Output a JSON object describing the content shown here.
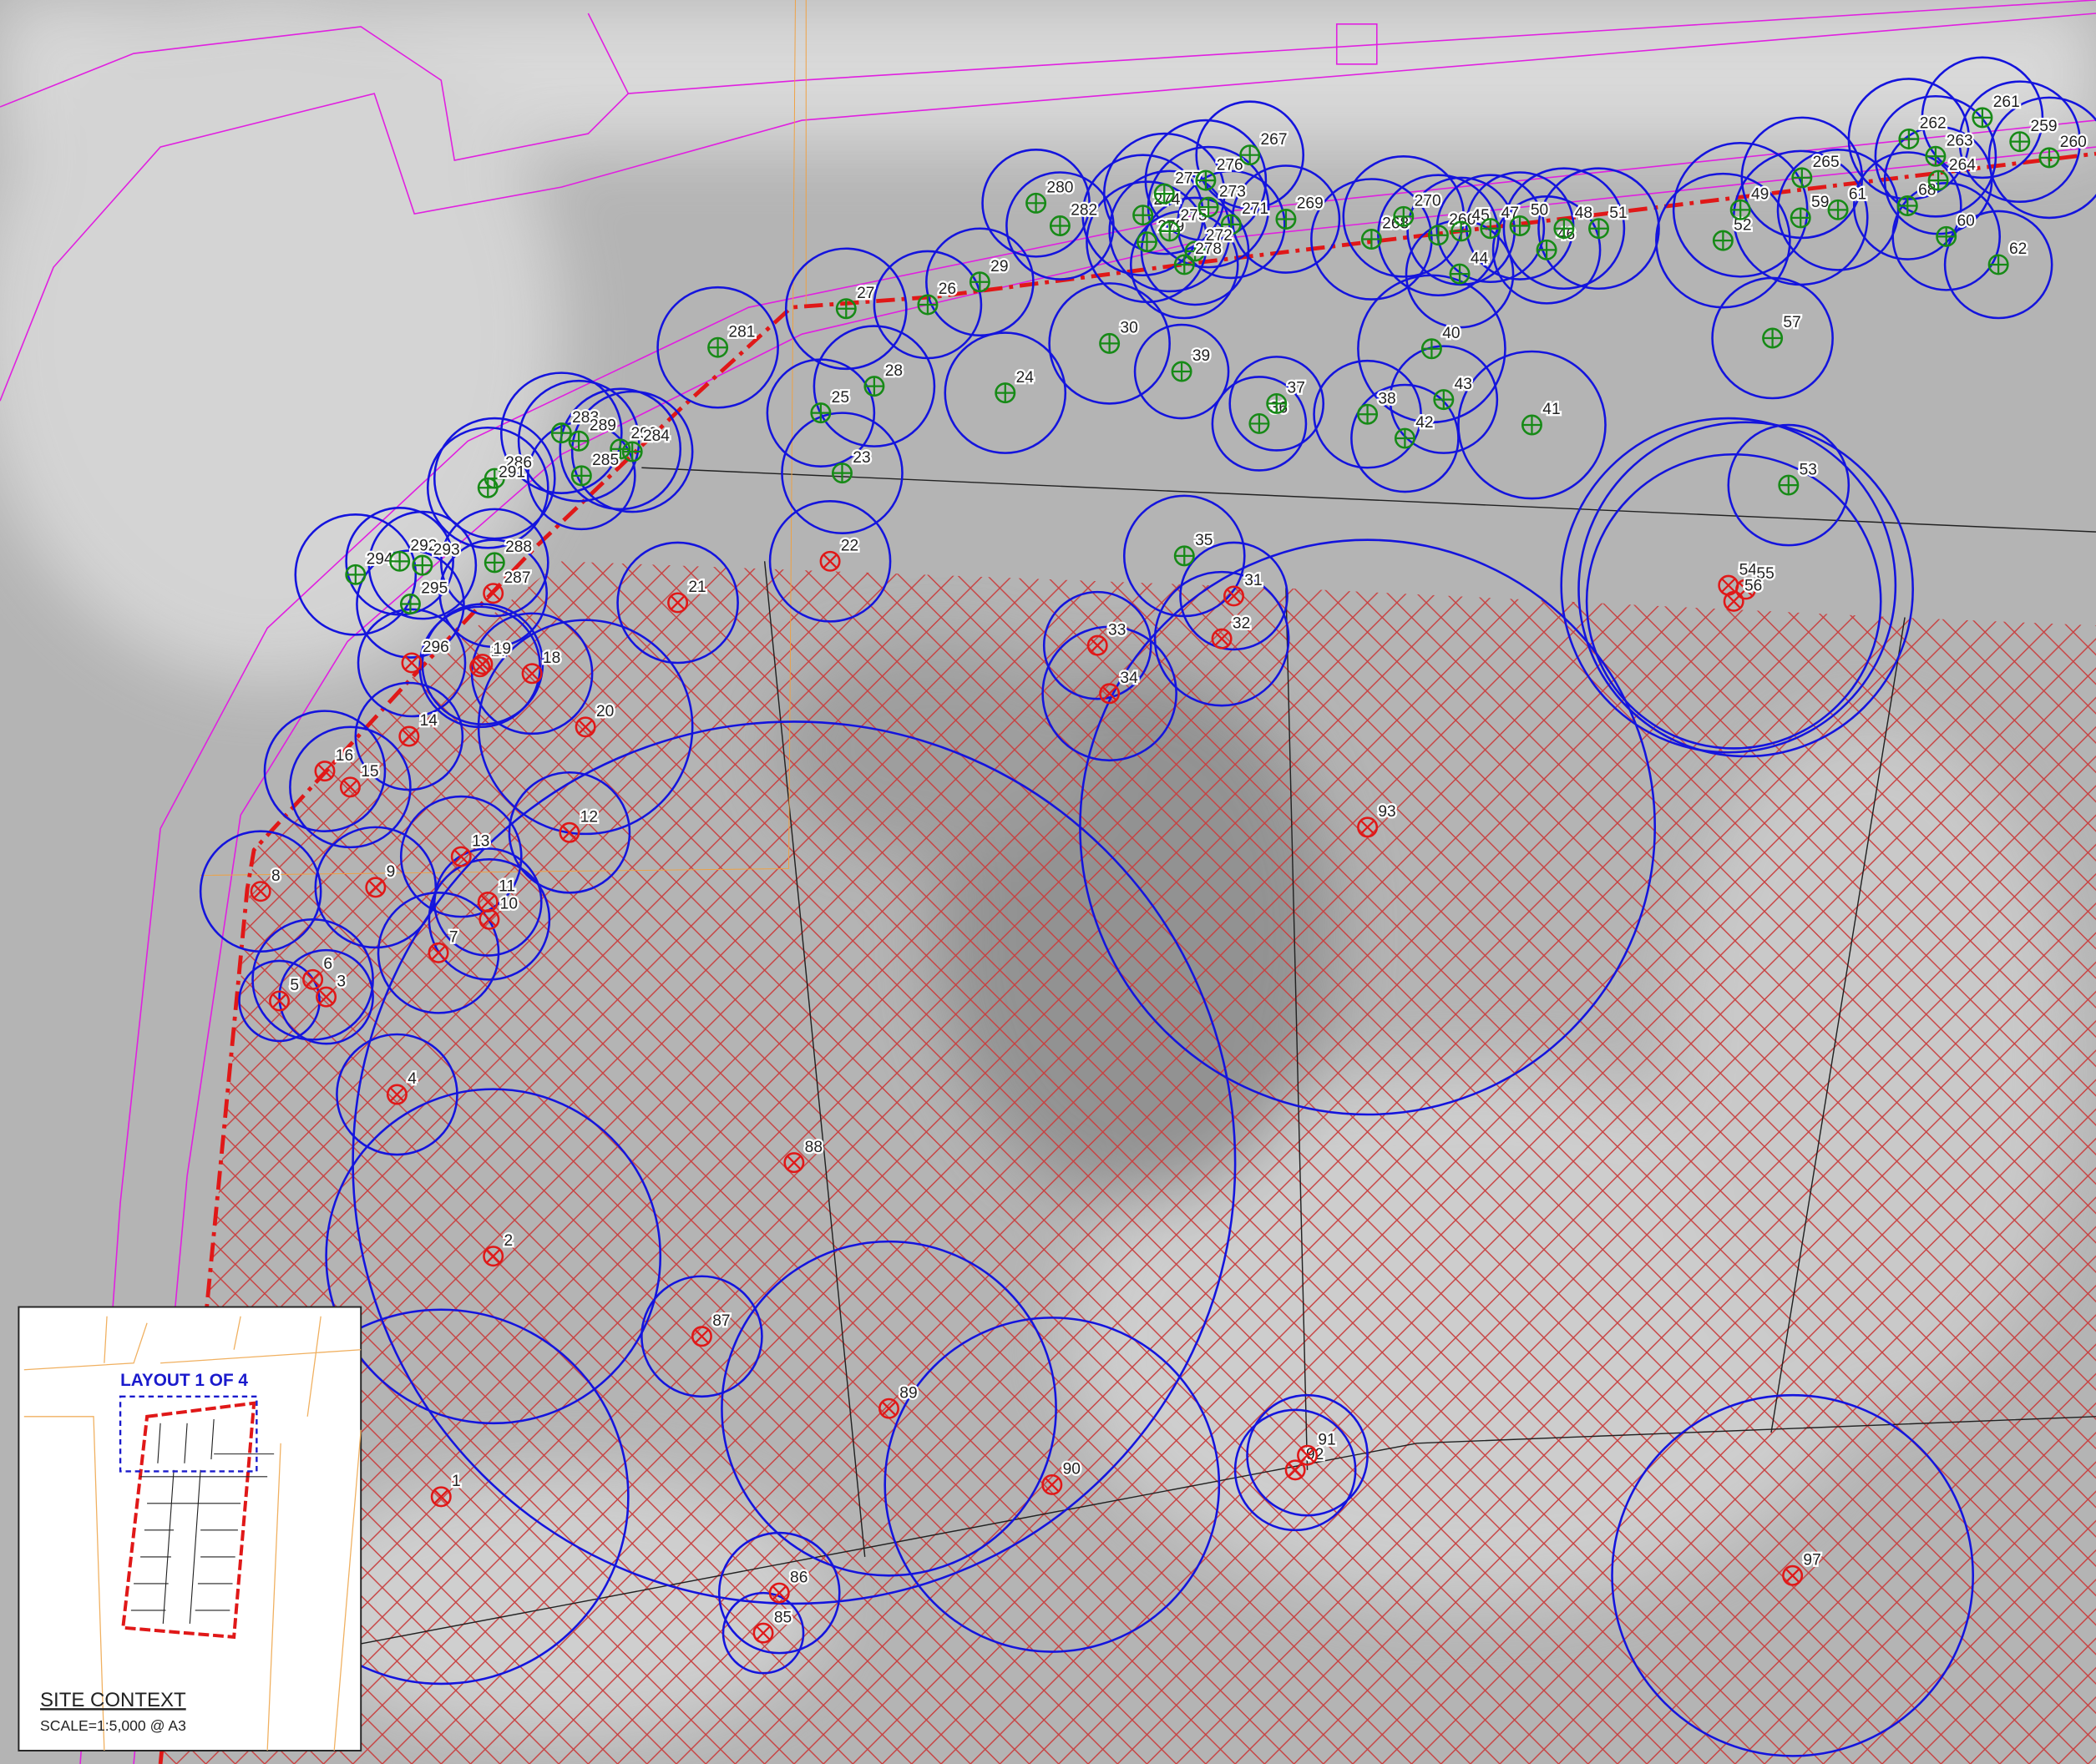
{
  "retained_trees": [
    "281",
    "27",
    "26",
    "29",
    "28",
    "25",
    "23",
    "24",
    "30",
    "39",
    "280",
    "282",
    "274",
    "277",
    "276",
    "279",
    "275",
    "273",
    "271",
    "272",
    "278",
    "267",
    "269",
    "268",
    "270",
    "266",
    "45",
    "47",
    "50",
    "46",
    "48",
    "51",
    "44",
    "40",
    "43",
    "38",
    "42",
    "41",
    "36",
    "37",
    "35",
    "53",
    "57",
    "52",
    "49",
    "59",
    "265",
    "61",
    "262",
    "263",
    "68",
    "264",
    "60",
    "62",
    "261",
    "259",
    "260",
    "286",
    "291",
    "283",
    "289",
    "290",
    "284",
    "285",
    "294",
    "292",
    "293",
    "288",
    "295"
  ],
  "removed_trees": [
    "287",
    "21",
    "22",
    "33",
    "34",
    "31",
    "32",
    "54",
    "55",
    "56",
    "296",
    "17",
    "19",
    "18",
    "20",
    "14",
    "16",
    "15",
    "12",
    "13",
    "9",
    "8",
    "11",
    "10",
    "7",
    "6",
    "5",
    "3",
    "4",
    "93",
    "88",
    "2",
    "87",
    "89",
    "1",
    "90",
    "92",
    "91",
    "97",
    "86",
    "85"
  ],
  "inset": {
    "layout_label": "LAYOUT 1 OF 4",
    "title": "SITE CONTEXT",
    "scale": "SCALE=1:5,000 @ A3"
  }
}
